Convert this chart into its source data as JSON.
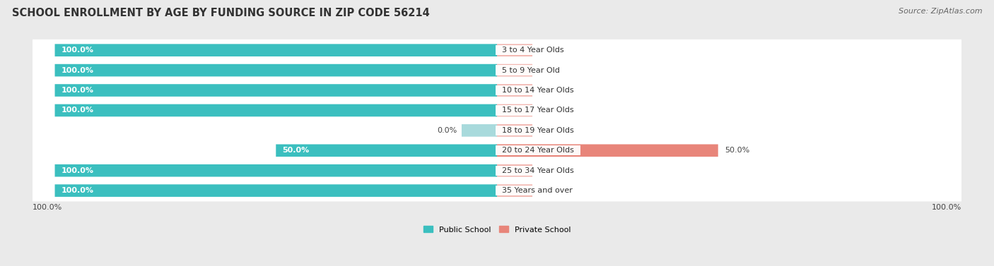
{
  "title": "SCHOOL ENROLLMENT BY AGE BY FUNDING SOURCE IN ZIP CODE 56214",
  "source": "Source: ZipAtlas.com",
  "categories": [
    "3 to 4 Year Olds",
    "5 to 9 Year Old",
    "10 to 14 Year Olds",
    "15 to 17 Year Olds",
    "18 to 19 Year Olds",
    "20 to 24 Year Olds",
    "25 to 34 Year Olds",
    "35 Years and over"
  ],
  "public_values": [
    100.0,
    100.0,
    100.0,
    100.0,
    0.0,
    50.0,
    100.0,
    100.0
  ],
  "private_values": [
    0.0,
    0.0,
    0.0,
    0.0,
    0.0,
    50.0,
    0.0,
    0.0
  ],
  "public_color": "#3BBFBF",
  "private_color": "#E8857A",
  "private_bg_color": "#F2B8B2",
  "public_light_color": "#A8DADC",
  "background_color": "#EAEAEA",
  "bar_bg_color": "#FFFFFF",
  "title_fontsize": 10.5,
  "source_fontsize": 8,
  "label_fontsize": 8,
  "axis_label_fontsize": 8,
  "legend_labels": [
    "Public School",
    "Private School"
  ],
  "x_left_label": "100.0%",
  "x_right_label": "100.0%"
}
